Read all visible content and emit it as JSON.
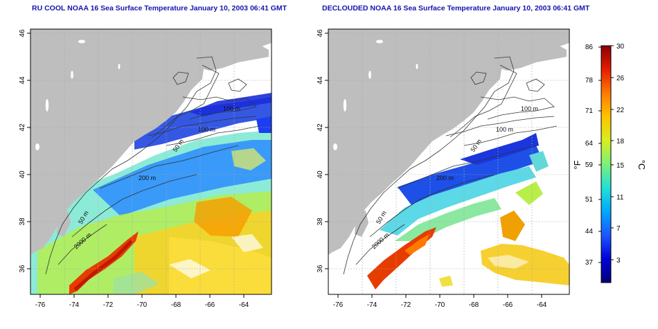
{
  "panels": [
    {
      "title": "RU COOL NOAA 16 Sea Surface Temperature January 10, 2003 06:41 GMT",
      "x_ticks": [
        "-76",
        "-74",
        "-72",
        "-70",
        "-68",
        "-66",
        "-64"
      ],
      "y_ticks": [
        "46",
        "44",
        "42",
        "40",
        "38",
        "36"
      ],
      "contour_labels": [
        "100 m",
        "100 m",
        "50 m",
        "200 m",
        "50 m",
        "2000 m"
      ]
    },
    {
      "title": "DECLOUDED NOAA 16 Sea Surface Temperature January 10, 2003 06:41 GMT",
      "x_ticks": [
        "-76",
        "-74",
        "-72",
        "-70",
        "-68",
        "-66",
        "-64"
      ],
      "y_ticks": [
        "46",
        "44",
        "42",
        "40",
        "38",
        "36"
      ],
      "contour_labels": [
        "100 m",
        "100 m",
        "50 m",
        "200 m",
        "50 m",
        "2000 m"
      ]
    }
  ],
  "colorbar": {
    "f_ticks": [
      "86",
      "78",
      "71",
      "64",
      "59",
      "51",
      "44",
      "37"
    ],
    "c_ticks": [
      "30",
      "26",
      "22",
      "18",
      "15",
      "11",
      "7",
      "3"
    ],
    "f_label": "°F",
    "c_label": "°C",
    "colors": [
      "#00007a",
      "#0000d8",
      "#1e56ff",
      "#00a8ff",
      "#21e0d8",
      "#7cf078",
      "#d8ee20",
      "#ffc400",
      "#ff7a00",
      "#e61c00",
      "#8a0000"
    ]
  },
  "colors": {
    "land": "#bebebe",
    "ocean_bg": "#ffffff",
    "title": "#1515b0",
    "grid": "#a8a8a8"
  }
}
